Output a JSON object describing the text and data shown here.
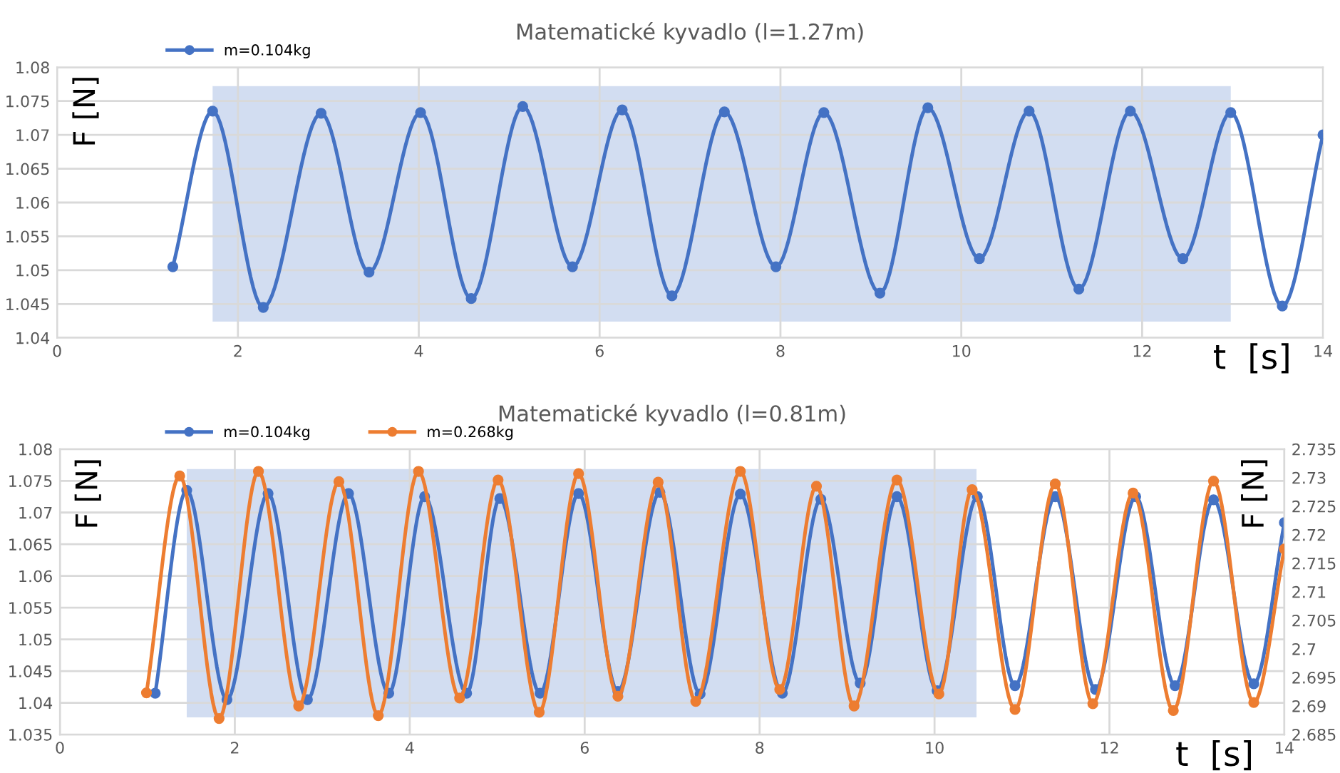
{
  "chart_data": [
    {
      "type": "line",
      "title": "Matematické kyvadlo (l=1.27m)",
      "xlabel": "t  [s]",
      "ylabel": "F [N]",
      "xlim": [
        0,
        14
      ],
      "xticks": [
        0,
        2,
        4,
        6,
        8,
        10,
        12,
        14
      ],
      "ylim": [
        1.04,
        1.08
      ],
      "yticks": [
        {
          "value": 1.04,
          "label": "1.04"
        },
        {
          "value": 1.045,
          "label": "1.045"
        },
        {
          "value": 1.05,
          "label": "1.05"
        },
        {
          "value": 1.055,
          "label": "1.055"
        },
        {
          "value": 1.06,
          "label": "1.06"
        },
        {
          "value": 1.065,
          "label": "1.065"
        },
        {
          "value": 1.07,
          "label": "1.07"
        },
        {
          "value": 1.075,
          "label": "1.075"
        },
        {
          "value": 1.08,
          "label": "1.08"
        }
      ],
      "grid": true,
      "legend": "top left",
      "marker": "circle",
      "line_style": "solid",
      "bands": [
        {
          "axis": "x",
          "from": 1.72,
          "to": 12.98,
          "color": "#b4c7e7"
        }
      ],
      "series": [
        {
          "name": "m=0.104kg",
          "color": "#4472c4",
          "x": [
            1.28,
            1.72,
            2.28,
            2.92,
            3.45,
            4.02,
            4.58,
            5.15,
            5.7,
            6.25,
            6.8,
            7.38,
            7.95,
            8.48,
            9.1,
            9.63,
            10.2,
            10.75,
            11.3,
            11.87,
            12.45,
            12.98,
            13.55,
            14.0
          ],
          "values": [
            1.0505,
            1.0735,
            1.0445,
            1.0732,
            1.0497,
            1.0733,
            1.0458,
            1.0742,
            1.0505,
            1.0737,
            1.0462,
            1.0734,
            1.0505,
            1.0733,
            1.0466,
            1.074,
            1.0517,
            1.0735,
            1.0472,
            1.0735,
            1.0517,
            1.0733,
            1.0447,
            1.07
          ]
        }
      ]
    },
    {
      "type": "line",
      "title": "Matematické kyvadlo (l=0.81m)",
      "xlabel": "t  [s]",
      "ylabel": "F [N]",
      "y2label": "F [N]",
      "xlim": [
        0,
        14
      ],
      "xticks": [
        0,
        2,
        4,
        6,
        8,
        10,
        12,
        14
      ],
      "ylim": [
        1.035,
        1.08
      ],
      "yticks": [
        {
          "value": 1.035,
          "label": "1.035"
        },
        {
          "value": 1.04,
          "label": "1.04"
        },
        {
          "value": 1.045,
          "label": "1.045"
        },
        {
          "value": 1.05,
          "label": "1.05"
        },
        {
          "value": 1.055,
          "label": "1.055"
        },
        {
          "value": 1.06,
          "label": "1.06"
        },
        {
          "value": 1.065,
          "label": "1.065"
        },
        {
          "value": 1.07,
          "label": "1.07"
        },
        {
          "value": 1.075,
          "label": "1.075"
        },
        {
          "value": 1.08,
          "label": "1.08"
        }
      ],
      "y2lim": [
        2.685,
        2.735
      ],
      "y2ticks": [
        {
          "value": 2.685,
          "label": "2.685"
        },
        {
          "value": 2.69,
          "label": "2.69"
        },
        {
          "value": 2.695,
          "label": "2.695"
        },
        {
          "value": 2.7,
          "label": "2.7"
        },
        {
          "value": 2.705,
          "label": "2.705"
        },
        {
          "value": 2.71,
          "label": "2.71"
        },
        {
          "value": 2.715,
          "label": "2.715"
        },
        {
          "value": 2.72,
          "label": "2.72"
        },
        {
          "value": 2.725,
          "label": "2.725"
        },
        {
          "value": 2.73,
          "label": "2.73"
        },
        {
          "value": 2.735,
          "label": "2.735"
        }
      ],
      "grid": true,
      "legend": "top left",
      "marker": "circle",
      "line_style": "solid",
      "bands": [
        {
          "axis": "x",
          "from": 1.45,
          "to": 10.48,
          "color": "#b4c7e7"
        }
      ],
      "series": [
        {
          "name": "m=0.104kg",
          "color": "#4472c4",
          "x": [
            1.09,
            1.45,
            1.91,
            2.38,
            2.83,
            3.3,
            3.76,
            4.17,
            4.65,
            5.03,
            5.49,
            5.93,
            6.38,
            6.86,
            7.32,
            7.78,
            8.26,
            8.7,
            9.15,
            9.57,
            10.03,
            10.49,
            10.92,
            11.38,
            11.84,
            12.3,
            12.75,
            13.19,
            13.65,
            14.0
          ],
          "values": [
            1.0415,
            1.0735,
            1.0405,
            1.073,
            1.0405,
            1.073,
            1.0415,
            1.0725,
            1.0415,
            1.0722,
            1.0415,
            1.073,
            1.0418,
            1.0732,
            1.0414,
            1.0729,
            1.0415,
            1.0721,
            1.0431,
            1.0725,
            1.0419,
            1.0725,
            1.0427,
            1.0725,
            1.0421,
            1.0725,
            1.0427,
            1.072,
            1.043,
            1.0684
          ]
        },
        {
          "name": "m=0.268kg",
          "color": "#ed7d31",
          "axis": "y2",
          "x": [
            0.99,
            1.37,
            1.82,
            2.27,
            2.73,
            3.19,
            3.64,
            4.1,
            4.57,
            5.01,
            5.48,
            5.93,
            6.38,
            6.84,
            7.27,
            7.78,
            8.23,
            8.65,
            9.08,
            9.57,
            10.05,
            10.43,
            10.92,
            11.38,
            11.81,
            12.27,
            12.73,
            13.19,
            13.65,
            14.0
          ],
          "values": [
            2.6923,
            2.7303,
            2.6878,
            2.7311,
            2.69,
            2.7293,
            2.6883,
            2.7311,
            2.6914,
            2.7296,
            2.6889,
            2.7307,
            2.6917,
            2.7292,
            2.6908,
            2.7311,
            2.6929,
            2.7285,
            2.69,
            2.7296,
            2.6921,
            2.7279,
            2.6894,
            2.7289,
            2.6904,
            2.7273,
            2.6892,
            2.7294,
            2.6906,
            2.7175
          ]
        }
      ]
    }
  ]
}
